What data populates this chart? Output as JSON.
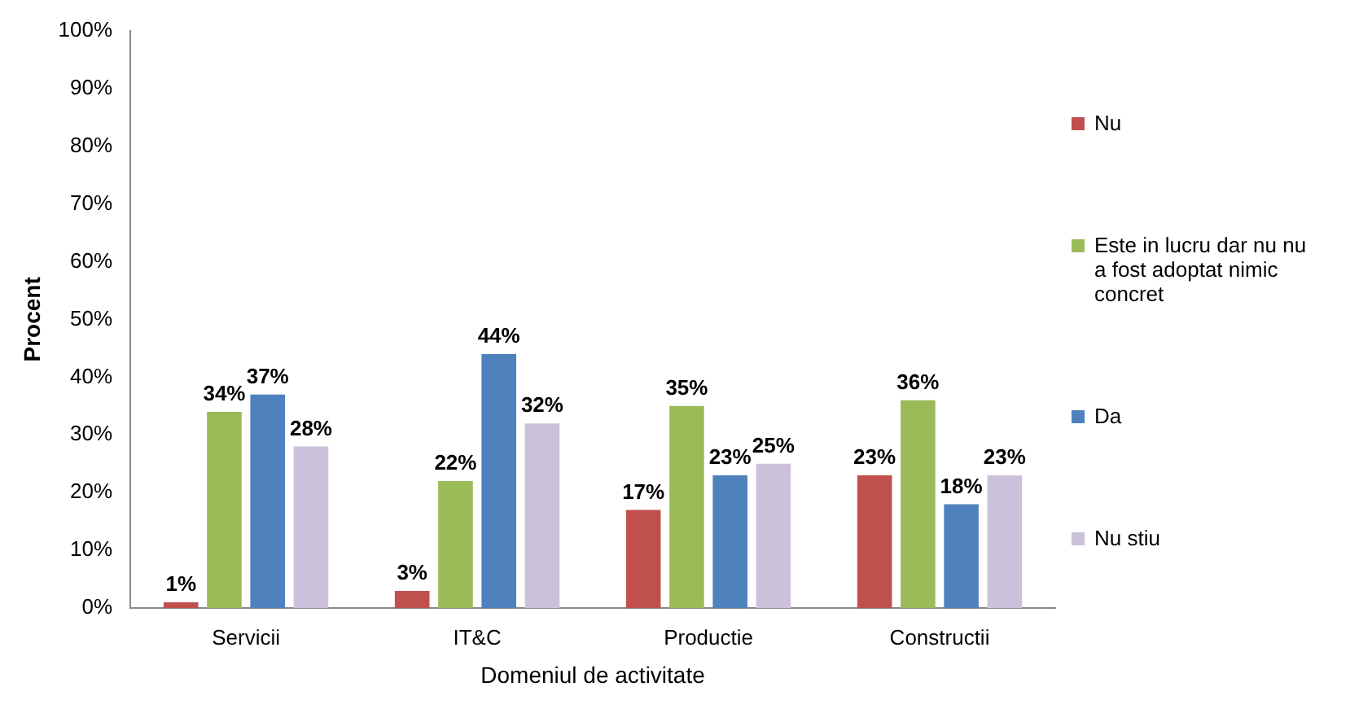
{
  "chart_data": {
    "type": "bar",
    "xlabel": "Domeniul de activitate",
    "ylabel": "Procent",
    "categories": [
      "Servicii",
      "IT&C",
      "Productie",
      "Constructii"
    ],
    "series": [
      {
        "name": "Nu",
        "color": "#c0504d",
        "values": [
          1,
          3,
          17,
          23
        ],
        "value_labels": [
          "1%",
          "3%",
          "17%",
          "23%"
        ]
      },
      {
        "name": "Este in lucru dar nu nu a fost adoptat nimic concret",
        "color": "#9bbb59",
        "values": [
          34,
          22,
          35,
          36
        ],
        "value_labels": [
          "34%",
          "22%",
          "35%",
          "36%"
        ]
      },
      {
        "name": "Da",
        "color": "#4f81bd",
        "values": [
          37,
          44,
          23,
          18
        ],
        "value_labels": [
          "37%",
          "44%",
          "23%",
          "18%"
        ]
      },
      {
        "name": "Nu stiu",
        "color": "#ccc1da",
        "values": [
          28,
          32,
          25,
          23
        ],
        "value_labels": [
          "28%",
          "32%",
          "25%",
          "23%"
        ]
      }
    ],
    "ylim": [
      0,
      100
    ],
    "yticks": [
      {
        "value": 0,
        "label": "0%"
      },
      {
        "value": 10,
        "label": "10%"
      },
      {
        "value": 20,
        "label": "20%"
      },
      {
        "value": 30,
        "label": "30%"
      },
      {
        "value": 40,
        "label": "40%"
      },
      {
        "value": 50,
        "label": "50%"
      },
      {
        "value": 60,
        "label": "60%"
      },
      {
        "value": 70,
        "label": "70%"
      },
      {
        "value": 80,
        "label": "80%"
      },
      {
        "value": 90,
        "label": "90%"
      },
      {
        "value": 100,
        "label": "100%"
      }
    ],
    "grid": false,
    "legend": "right"
  }
}
